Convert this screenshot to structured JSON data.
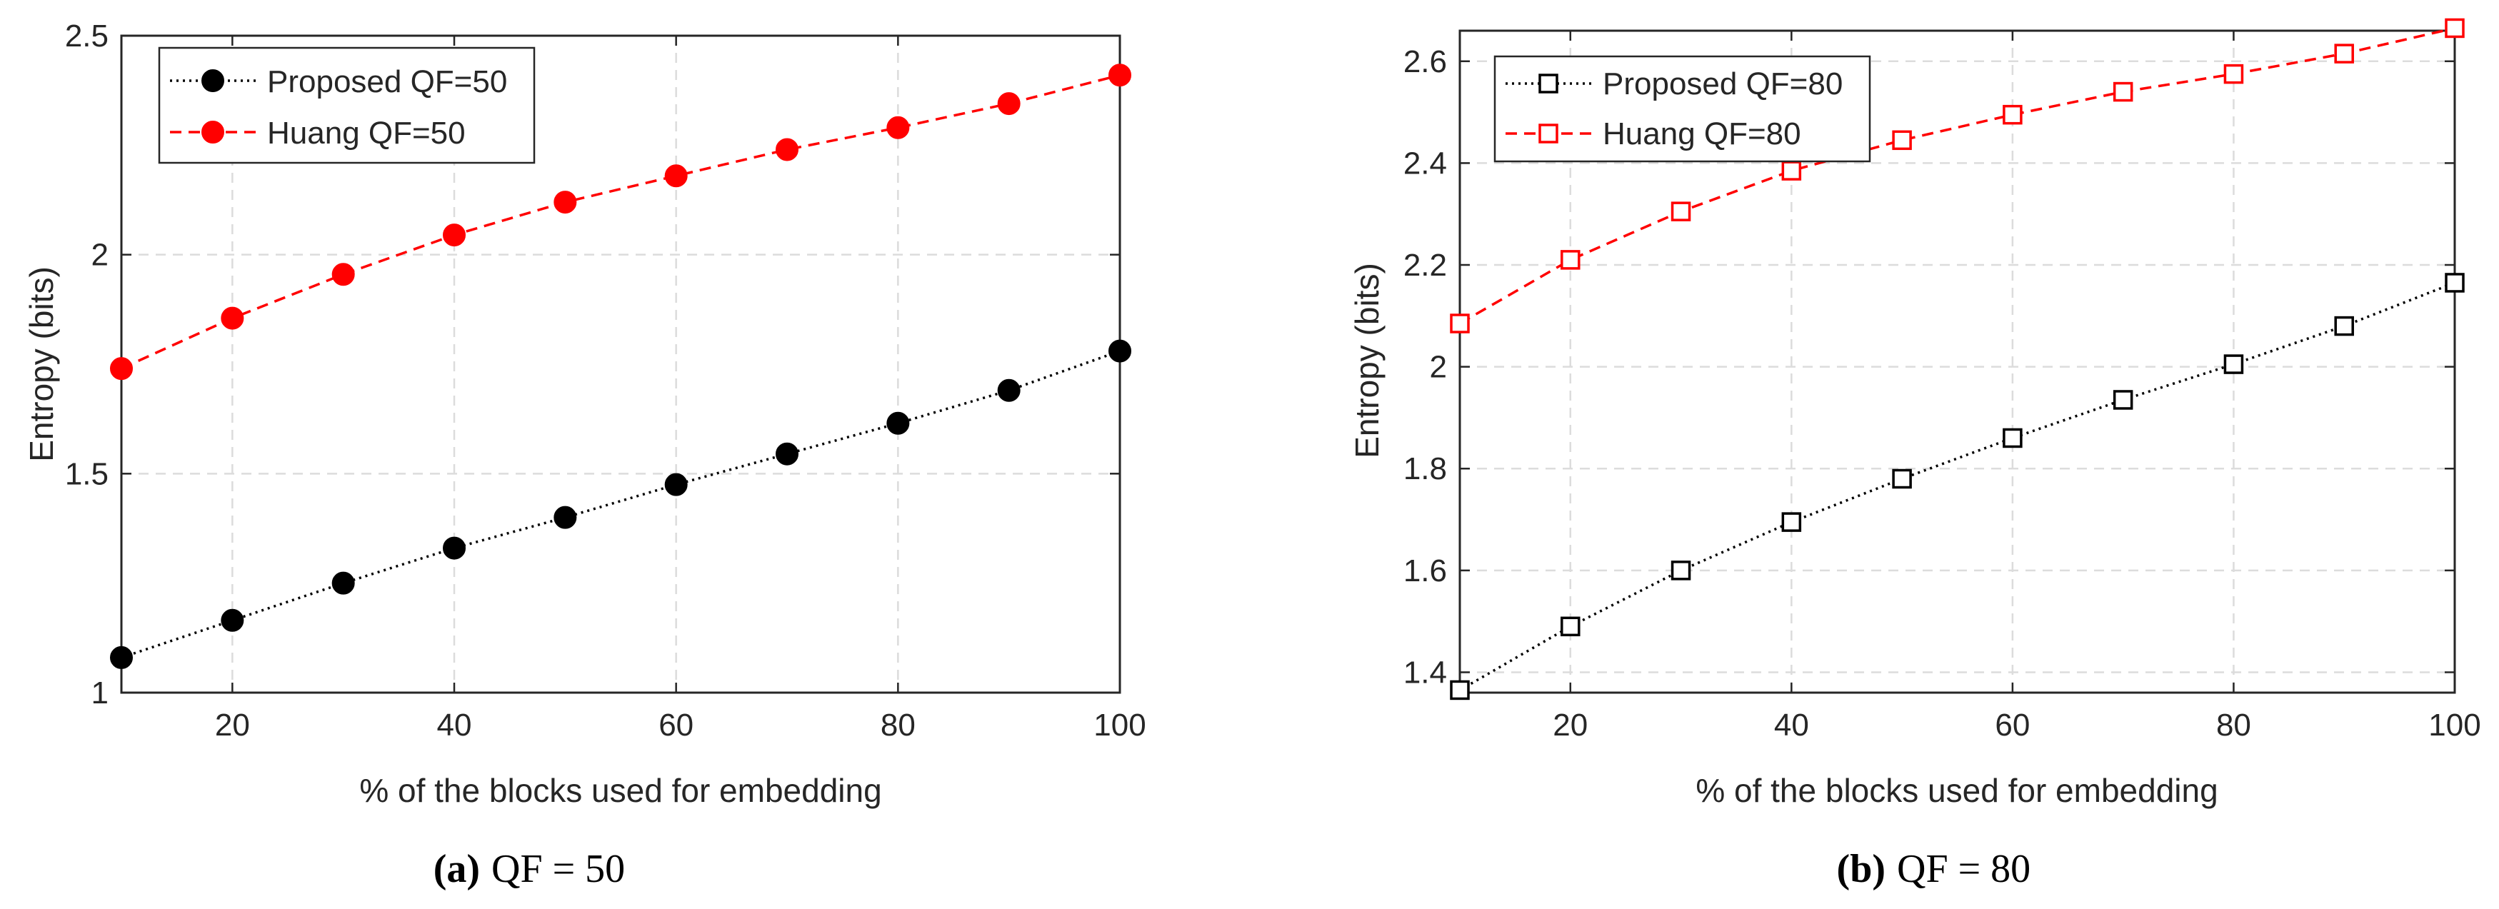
{
  "colors": {
    "proposed": "#000000",
    "huang": "#ff0000",
    "grid": "#dcdcdc",
    "axis": "#262626",
    "background": "#ffffff"
  },
  "chart_data": [
    {
      "type": "line",
      "xlabel": "% of the blocks used for embedding",
      "ylabel": "Entropy (bits)",
      "xlim": [
        10,
        100
      ],
      "ylim": [
        1,
        2.5
      ],
      "xticks": [
        20,
        40,
        60,
        80,
        100
      ],
      "xtick_labels": [
        "20",
        "40",
        "60",
        "80",
        "100"
      ],
      "yticks": [
        1,
        1.5,
        2,
        2.5
      ],
      "ytick_labels": [
        "1",
        "1.5",
        "2",
        "2.5"
      ],
      "grid": true,
      "legend_position": "top-left",
      "caption": {
        "letter": "(a)",
        "text": "QF = 50"
      },
      "x": [
        10,
        20,
        30,
        40,
        50,
        60,
        70,
        80,
        90,
        100
      ],
      "series": [
        {
          "name": "Proposed QF=50",
          "color": "#000000",
          "line_style": "dotted",
          "marker": "filled-circle",
          "values": [
            1.08,
            1.165,
            1.25,
            1.33,
            1.4,
            1.475,
            1.545,
            1.615,
            1.69,
            1.78
          ]
        },
        {
          "name": "Huang QF=50",
          "color": "#ff0000",
          "line_style": "dashed",
          "marker": "filled-circle",
          "values": [
            1.74,
            1.855,
            1.955,
            2.045,
            2.12,
            2.18,
            2.24,
            2.29,
            2.345,
            2.41
          ]
        }
      ]
    },
    {
      "type": "line",
      "xlabel": "% of the blocks used for embedding",
      "ylabel": "Entropy (bits)",
      "xlim": [
        10,
        100
      ],
      "ylim": [
        1.36,
        2.66
      ],
      "xticks": [
        20,
        40,
        60,
        80,
        100
      ],
      "xtick_labels": [
        "20",
        "40",
        "60",
        "80",
        "100"
      ],
      "yticks": [
        1.4,
        1.6,
        1.8,
        2.0,
        2.2,
        2.4,
        2.6
      ],
      "ytick_labels": [
        "1.4",
        "1.6",
        "1.8",
        "2",
        "2.2",
        "2.4",
        "2.6"
      ],
      "grid": true,
      "legend_position": "top-left",
      "caption": {
        "letter": "(b)",
        "text": "QF = 80"
      },
      "x": [
        10,
        20,
        30,
        40,
        50,
        60,
        70,
        80,
        90,
        100
      ],
      "series": [
        {
          "name": "Proposed QF=80",
          "color": "#000000",
          "line_style": "dotted",
          "marker": "open-square",
          "values": [
            1.365,
            1.49,
            1.6,
            1.695,
            1.78,
            1.86,
            1.935,
            2.005,
            2.08,
            2.165
          ]
        },
        {
          "name": "Huang QF=80",
          "color": "#ff0000",
          "line_style": "dashed",
          "marker": "open-square",
          "values": [
            2.085,
            2.21,
            2.305,
            2.385,
            2.445,
            2.495,
            2.54,
            2.575,
            2.615,
            2.665
          ]
        }
      ]
    }
  ]
}
